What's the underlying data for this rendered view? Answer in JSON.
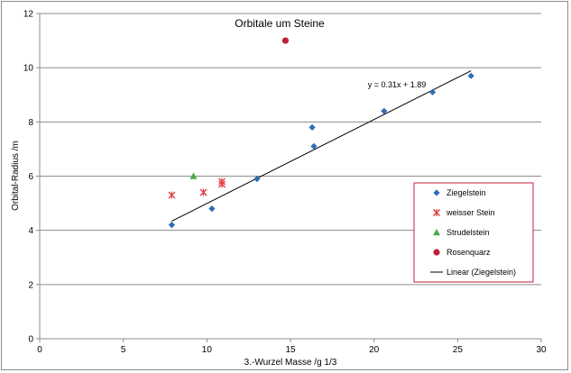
{
  "chart_data": {
    "type": "scatter",
    "title": "Orbitale um Steine",
    "xlabel": "3.-Wurzel Masse /g 1/3",
    "ylabel": "Orbital-Radius /m",
    "xlim": [
      0,
      30
    ],
    "ylim": [
      0,
      12
    ],
    "xticks": [
      0,
      5,
      10,
      15,
      20,
      25,
      30
    ],
    "yticks": [
      0,
      2,
      4,
      6,
      8,
      10,
      12
    ],
    "grid": "horizontal",
    "legend_position": "right",
    "series": [
      {
        "name": "Ziegelstein",
        "marker": "diamond",
        "color": "#2e6cb5",
        "points": [
          [
            7.9,
            4.2
          ],
          [
            10.3,
            4.8
          ],
          [
            13.0,
            5.9
          ],
          [
            16.3,
            7.8
          ],
          [
            16.4,
            7.1
          ],
          [
            20.6,
            8.4
          ],
          [
            23.5,
            9.1
          ],
          [
            25.8,
            9.7
          ]
        ]
      },
      {
        "name": "weisser Stein",
        "marker": "asterisk",
        "color": "#e04040",
        "points": [
          [
            7.9,
            5.3
          ],
          [
            9.8,
            5.4
          ],
          [
            10.9,
            5.7
          ],
          [
            10.9,
            5.8
          ]
        ]
      },
      {
        "name": "Strudelstein",
        "marker": "triangle",
        "color": "#4aa84a",
        "points": [
          [
            9.2,
            6.0
          ]
        ]
      },
      {
        "name": "Rosenquarz",
        "marker": "circle",
        "color": "#c0203a",
        "points": [
          [
            14.7,
            11.0
          ]
        ]
      }
    ],
    "trendline": {
      "name": "Linear (Ziegelstein)",
      "slope": 0.31,
      "intercept": 1.89,
      "x_range": [
        7.9,
        25.8
      ],
      "equation_label": "y = 0.31x + 1.89",
      "color": "#000000"
    }
  }
}
